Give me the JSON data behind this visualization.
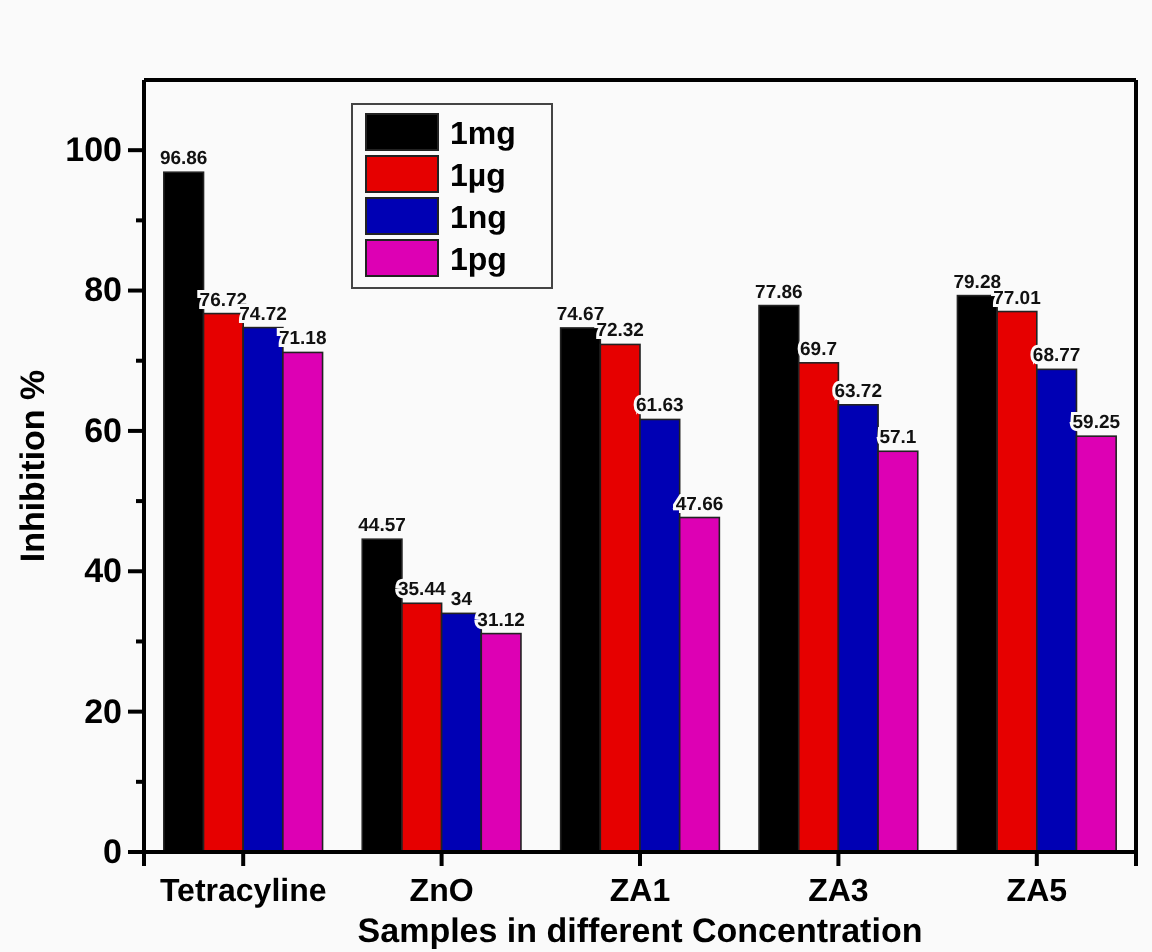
{
  "chart_data": {
    "type": "bar",
    "xlabel": "Samples in different Concentration",
    "ylabel": "Inhibition %",
    "categories": [
      "Tetracyline",
      "ZnO",
      "ZA1",
      "ZA3",
      "ZA5"
    ],
    "series": [
      {
        "name": "1mg",
        "color": "#000000",
        "values": [
          96.86,
          44.57,
          74.67,
          77.86,
          79.28
        ]
      },
      {
        "name": "1µg",
        "color": "#e60000",
        "values": [
          76.72,
          35.44,
          72.32,
          69.7,
          77.01
        ]
      },
      {
        "name": "1ng",
        "color": "#0000b4",
        "values": [
          74.72,
          34,
          61.63,
          63.72,
          68.77
        ]
      },
      {
        "name": "1pg",
        "color": "#dd00b4",
        "values": [
          71.18,
          31.12,
          47.66,
          57.1,
          59.25
        ]
      }
    ],
    "ylim": [
      0,
      110
    ],
    "yticks": [
      0,
      {
        "value": 10,
        "label": null
      },
      20,
      {
        "value": 30,
        "label": null
      },
      40,
      {
        "value": 50,
        "label": null
      },
      60,
      {
        "value": 70,
        "label": null
      },
      80,
      {
        "value": 90,
        "label": null
      },
      100
    ],
    "data_labels": true,
    "legend": "top",
    "grid": false
  }
}
